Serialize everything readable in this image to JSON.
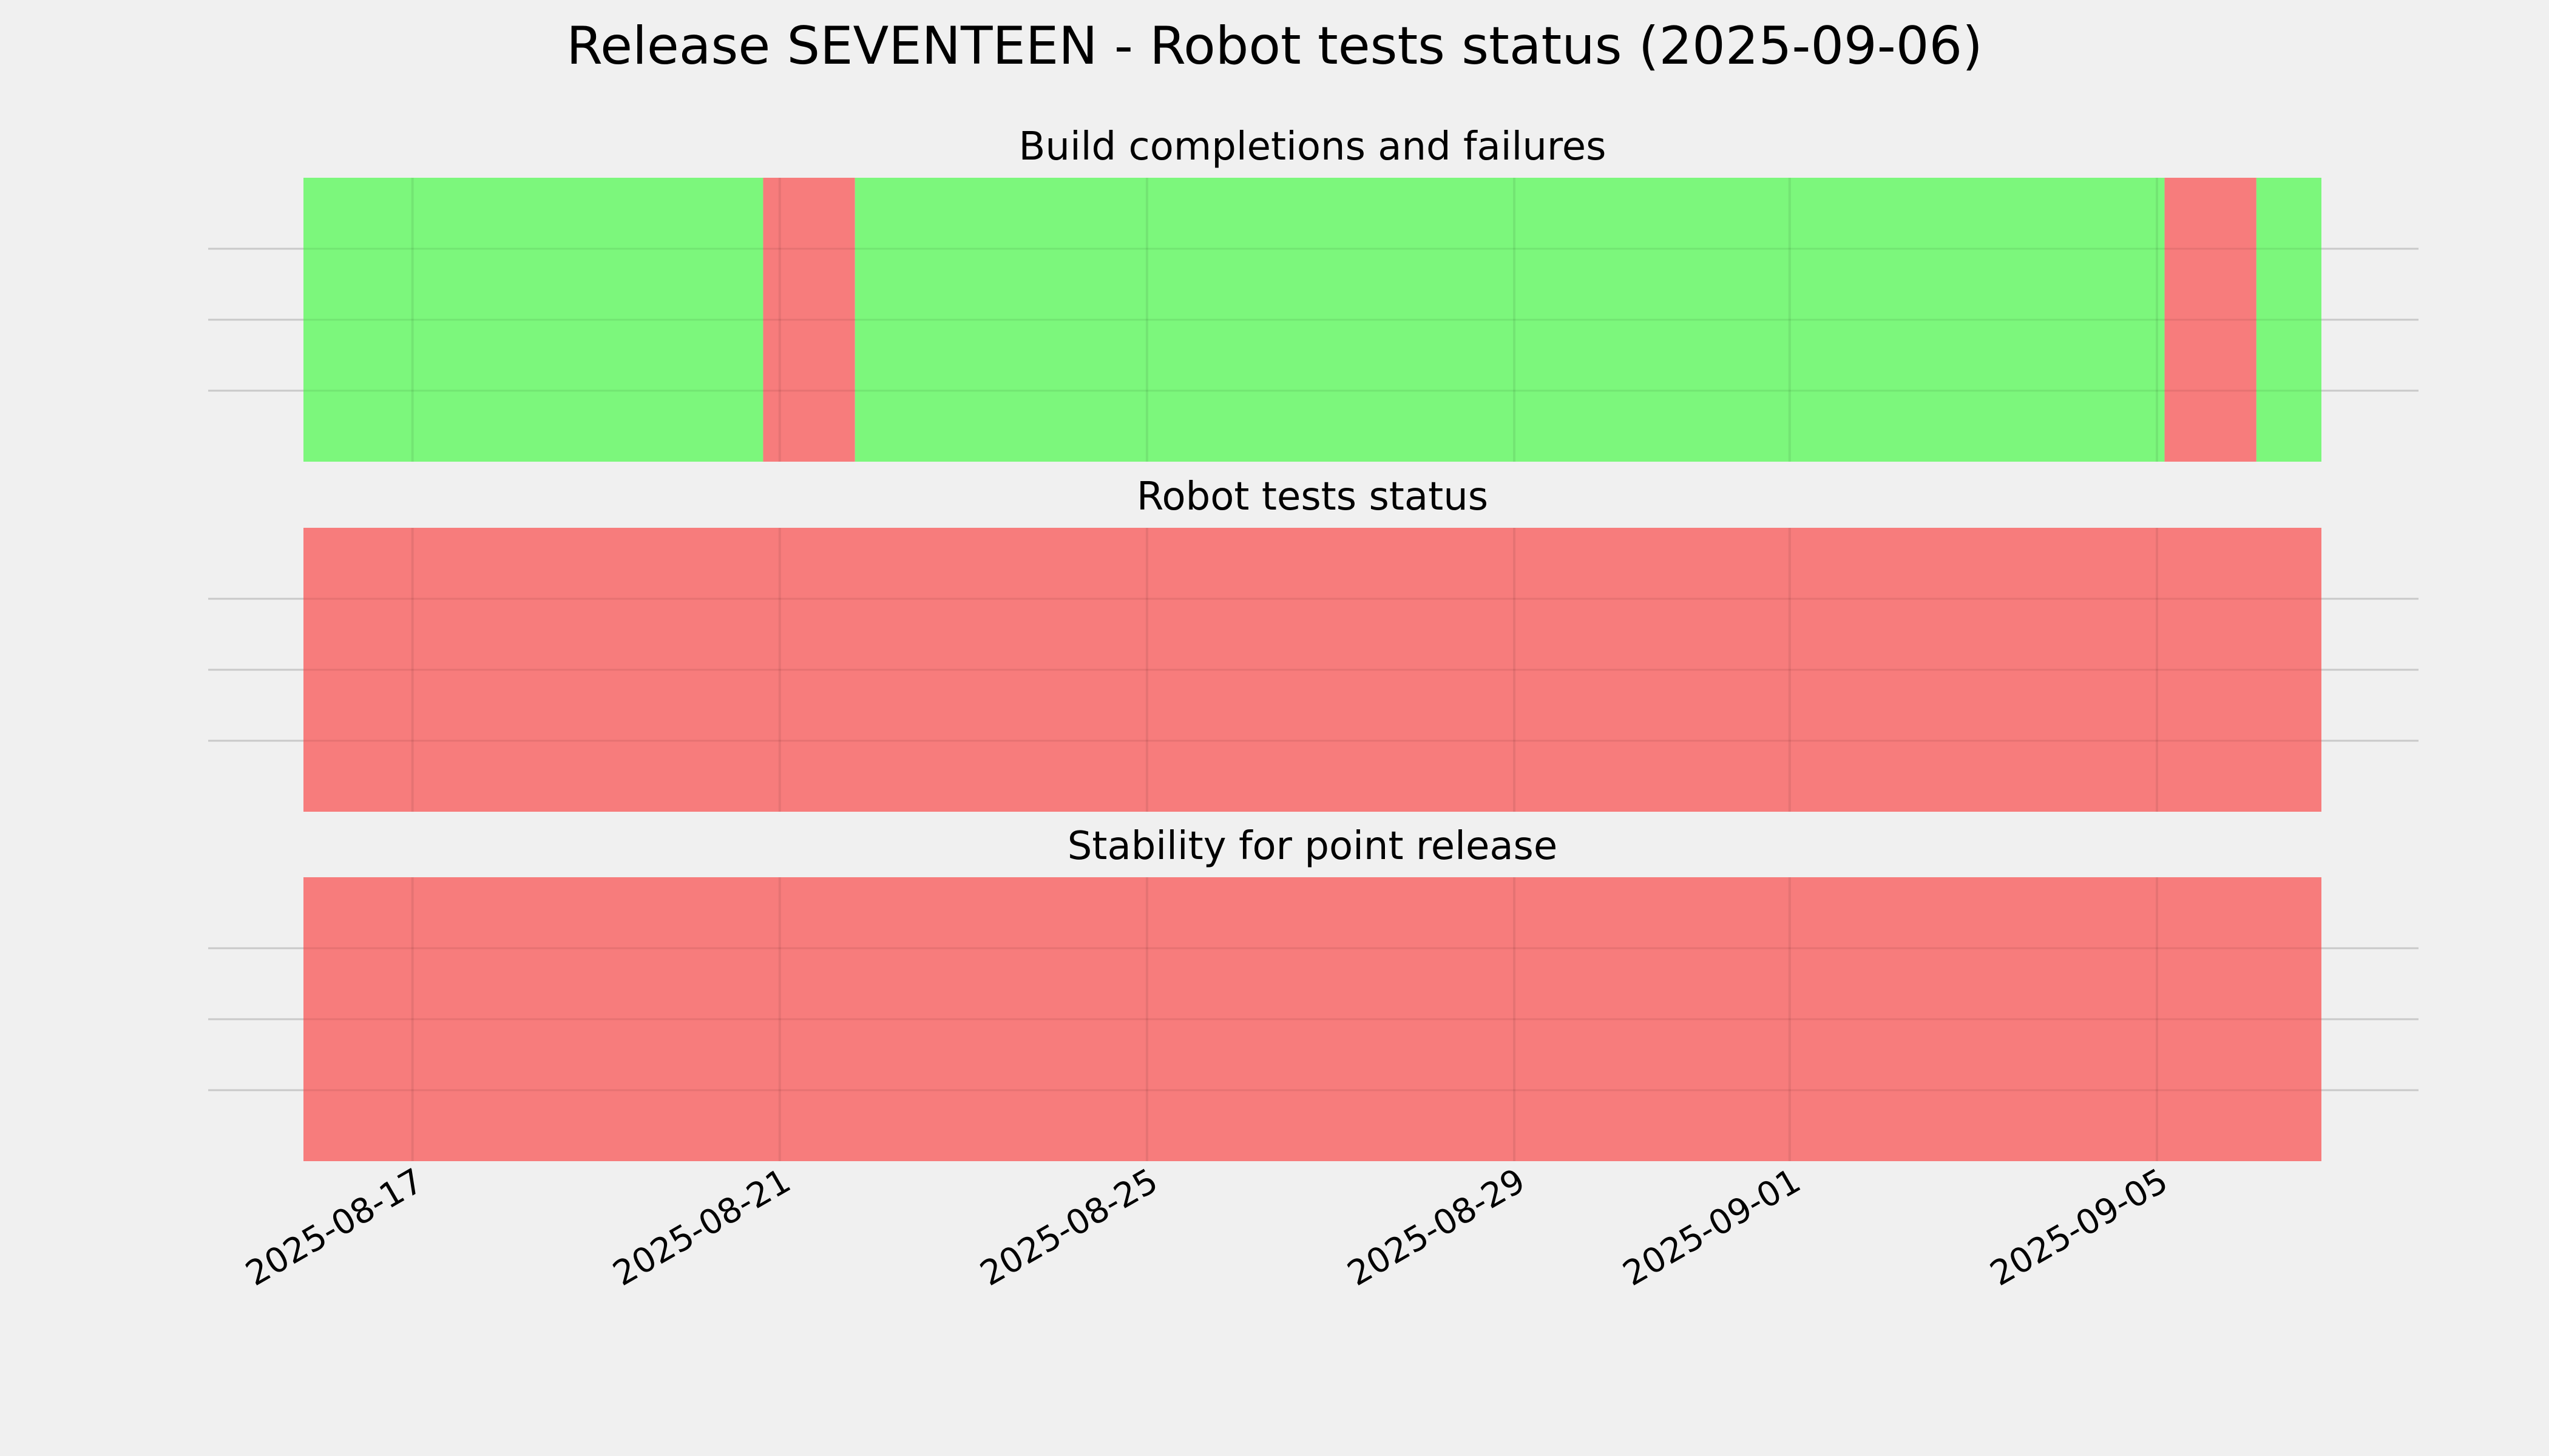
{
  "chart_data": {
    "type": "timeline",
    "title": "Release SEVENTEEN - Robot tests status (2025-09-06)",
    "x_range": [
      "2025-08-15T19:30",
      "2025-09-06T19:00"
    ],
    "x_ticks": [
      "2025-08-17",
      "2025-08-21",
      "2025-08-25",
      "2025-08-29",
      "2025-09-01",
      "2025-09-05"
    ],
    "grid": true,
    "colors": {
      "pass": "#77f777",
      "fail": "#f77777",
      "background": "#f0f0f0",
      "grid": "#c9c9c9"
    },
    "panels": [
      {
        "title": "Build completions and failures",
        "segments": [
          {
            "start": "2025-08-15T19:30",
            "end": "2025-08-20T19:40",
            "status": "pass"
          },
          {
            "start": "2025-08-20T19:40",
            "end": "2025-08-21T19:40",
            "status": "fail"
          },
          {
            "start": "2025-08-21T19:40",
            "end": "2025-09-05T02:00",
            "status": "pass"
          },
          {
            "start": "2025-09-05T02:00",
            "end": "2025-09-06T02:00",
            "status": "fail"
          },
          {
            "start": "2025-09-06T02:00",
            "end": "2025-09-06T19:00",
            "status": "pass"
          }
        ]
      },
      {
        "title": "Robot tests status",
        "segments": [
          {
            "start": "2025-08-15T19:30",
            "end": "2025-09-06T19:00",
            "status": "fail"
          }
        ]
      },
      {
        "title": "Stability for point release",
        "segments": [
          {
            "start": "2025-08-15T19:30",
            "end": "2025-09-06T19:00",
            "status": "fail"
          }
        ]
      }
    ]
  }
}
